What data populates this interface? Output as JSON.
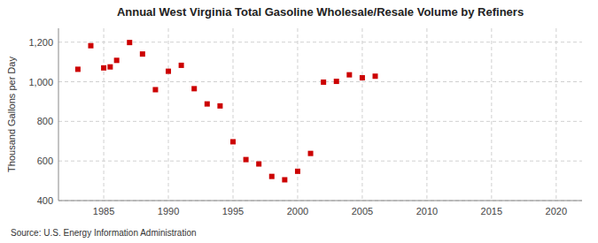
{
  "chart_data": {
    "type": "scatter",
    "title": "Annual West Virginia Total Gasoline Wholesale/Resale Volume by Refiners",
    "ylabel": "Thousand Gallons per Day",
    "source": "Source: U.S. Energy Information Administration",
    "color": "#cc0000",
    "marker": "square",
    "grid": true,
    "xlim": [
      1981.5,
      2022
    ],
    "ylim": [
      400,
      1270
    ],
    "xticks": [
      1985,
      1990,
      1995,
      2000,
      2005,
      2010,
      2015,
      2020
    ],
    "yticks": [
      400,
      600,
      800,
      {
        "value": 1000,
        "label": "1,000"
      },
      {
        "value": 1200,
        "label": "1,200"
      }
    ],
    "x": [
      1983,
      1984,
      1985,
      1985.5,
      1986,
      1987,
      1988,
      1989,
      1990,
      1991,
      1992,
      1993,
      1994,
      1995,
      1996,
      1997,
      1998,
      1999,
      2000,
      2001,
      2002,
      2003,
      2004,
      2005,
      2006
    ],
    "values": [
      1063,
      1182,
      1070,
      1075,
      1108,
      1198,
      1140,
      960,
      1053,
      1083,
      965,
      888,
      878,
      697,
      607,
      585,
      522,
      505,
      548,
      638,
      998,
      1002,
      1035,
      1020,
      1028
    ]
  }
}
